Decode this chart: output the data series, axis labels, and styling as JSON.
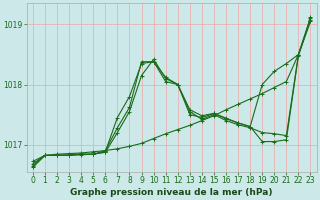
{
  "xlabel": "Graphe pression niveau de la mer (hPa)",
  "background_color": "#cce8e8",
  "grid_color": "#e8b0b0",
  "line_color": "#1a6b1a",
  "xlim": [
    -0.5,
    23.5
  ],
  "ylim": [
    1016.55,
    1019.35
  ],
  "yticks": [
    1017,
    1018,
    1019
  ],
  "xticks": [
    0,
    1,
    2,
    3,
    4,
    5,
    6,
    7,
    8,
    9,
    10,
    11,
    12,
    13,
    14,
    15,
    16,
    17,
    18,
    19,
    20,
    21,
    22,
    23
  ],
  "series": [
    {
      "x": [
        0,
        1,
        2,
        3,
        4,
        5,
        6,
        7,
        8,
        9,
        10,
        11,
        12,
        13,
        14,
        15,
        16,
        17,
        18,
        19,
        20,
        21,
        22,
        23
      ],
      "y": [
        1016.72,
        1016.82,
        1016.84,
        1016.85,
        1016.86,
        1016.88,
        1016.9,
        1016.93,
        1016.97,
        1017.02,
        1017.1,
        1017.18,
        1017.25,
        1017.32,
        1017.4,
        1017.48,
        1017.58,
        1017.67,
        1017.76,
        1017.85,
        1017.95,
        1018.05,
        1018.5,
        1019.05
      ]
    },
    {
      "x": [
        0,
        1,
        2,
        3,
        4,
        5,
        6,
        7,
        8,
        9,
        10,
        11,
        12,
        13,
        14,
        15,
        16,
        17,
        18,
        19,
        20,
        21,
        22,
        23
      ],
      "y": [
        1016.68,
        1016.82,
        1016.82,
        1016.83,
        1016.84,
        1016.84,
        1016.87,
        1017.2,
        1017.55,
        1018.15,
        1018.42,
        1018.1,
        1018.0,
        1017.55,
        1017.42,
        1017.5,
        1017.4,
        1017.33,
        1017.28,
        1017.2,
        1017.18,
        1017.15,
        1018.5,
        1019.1
      ]
    },
    {
      "x": [
        0,
        1,
        2,
        3,
        4,
        5,
        6,
        7,
        8,
        9,
        10,
        11,
        12,
        13,
        14,
        15,
        16,
        17,
        18,
        19,
        20,
        21,
        22,
        23
      ],
      "y": [
        1016.65,
        1016.82,
        1016.82,
        1016.82,
        1016.83,
        1016.84,
        1016.88,
        1017.45,
        1017.8,
        1018.35,
        1018.38,
        1018.12,
        1018.0,
        1017.58,
        1017.48,
        1017.52,
        1017.44,
        1017.36,
        1017.3,
        1018.0,
        1018.22,
        1018.35,
        1018.5,
        1019.12
      ]
    },
    {
      "x": [
        0,
        1,
        2,
        3,
        4,
        5,
        6,
        7,
        8,
        9,
        10,
        11,
        12,
        13,
        14,
        15,
        16,
        17,
        18,
        19,
        20,
        21,
        22,
        23
      ],
      "y": [
        1016.62,
        1016.82,
        1016.82,
        1016.82,
        1016.84,
        1016.84,
        1016.9,
        1017.28,
        1017.62,
        1018.38,
        1018.38,
        1018.05,
        1018.0,
        1017.5,
        1017.45,
        1017.52,
        1017.43,
        1017.36,
        1017.3,
        1017.05,
        1017.05,
        1017.08,
        1018.48,
        1019.08
      ]
    }
  ],
  "tick_fontsize": 5.5,
  "label_fontsize": 6.5,
  "tick_color": "#1a6b1a",
  "label_color": "#1a4a1a",
  "marker": "+",
  "linewidth": 0.8,
  "markersize": 3.5
}
